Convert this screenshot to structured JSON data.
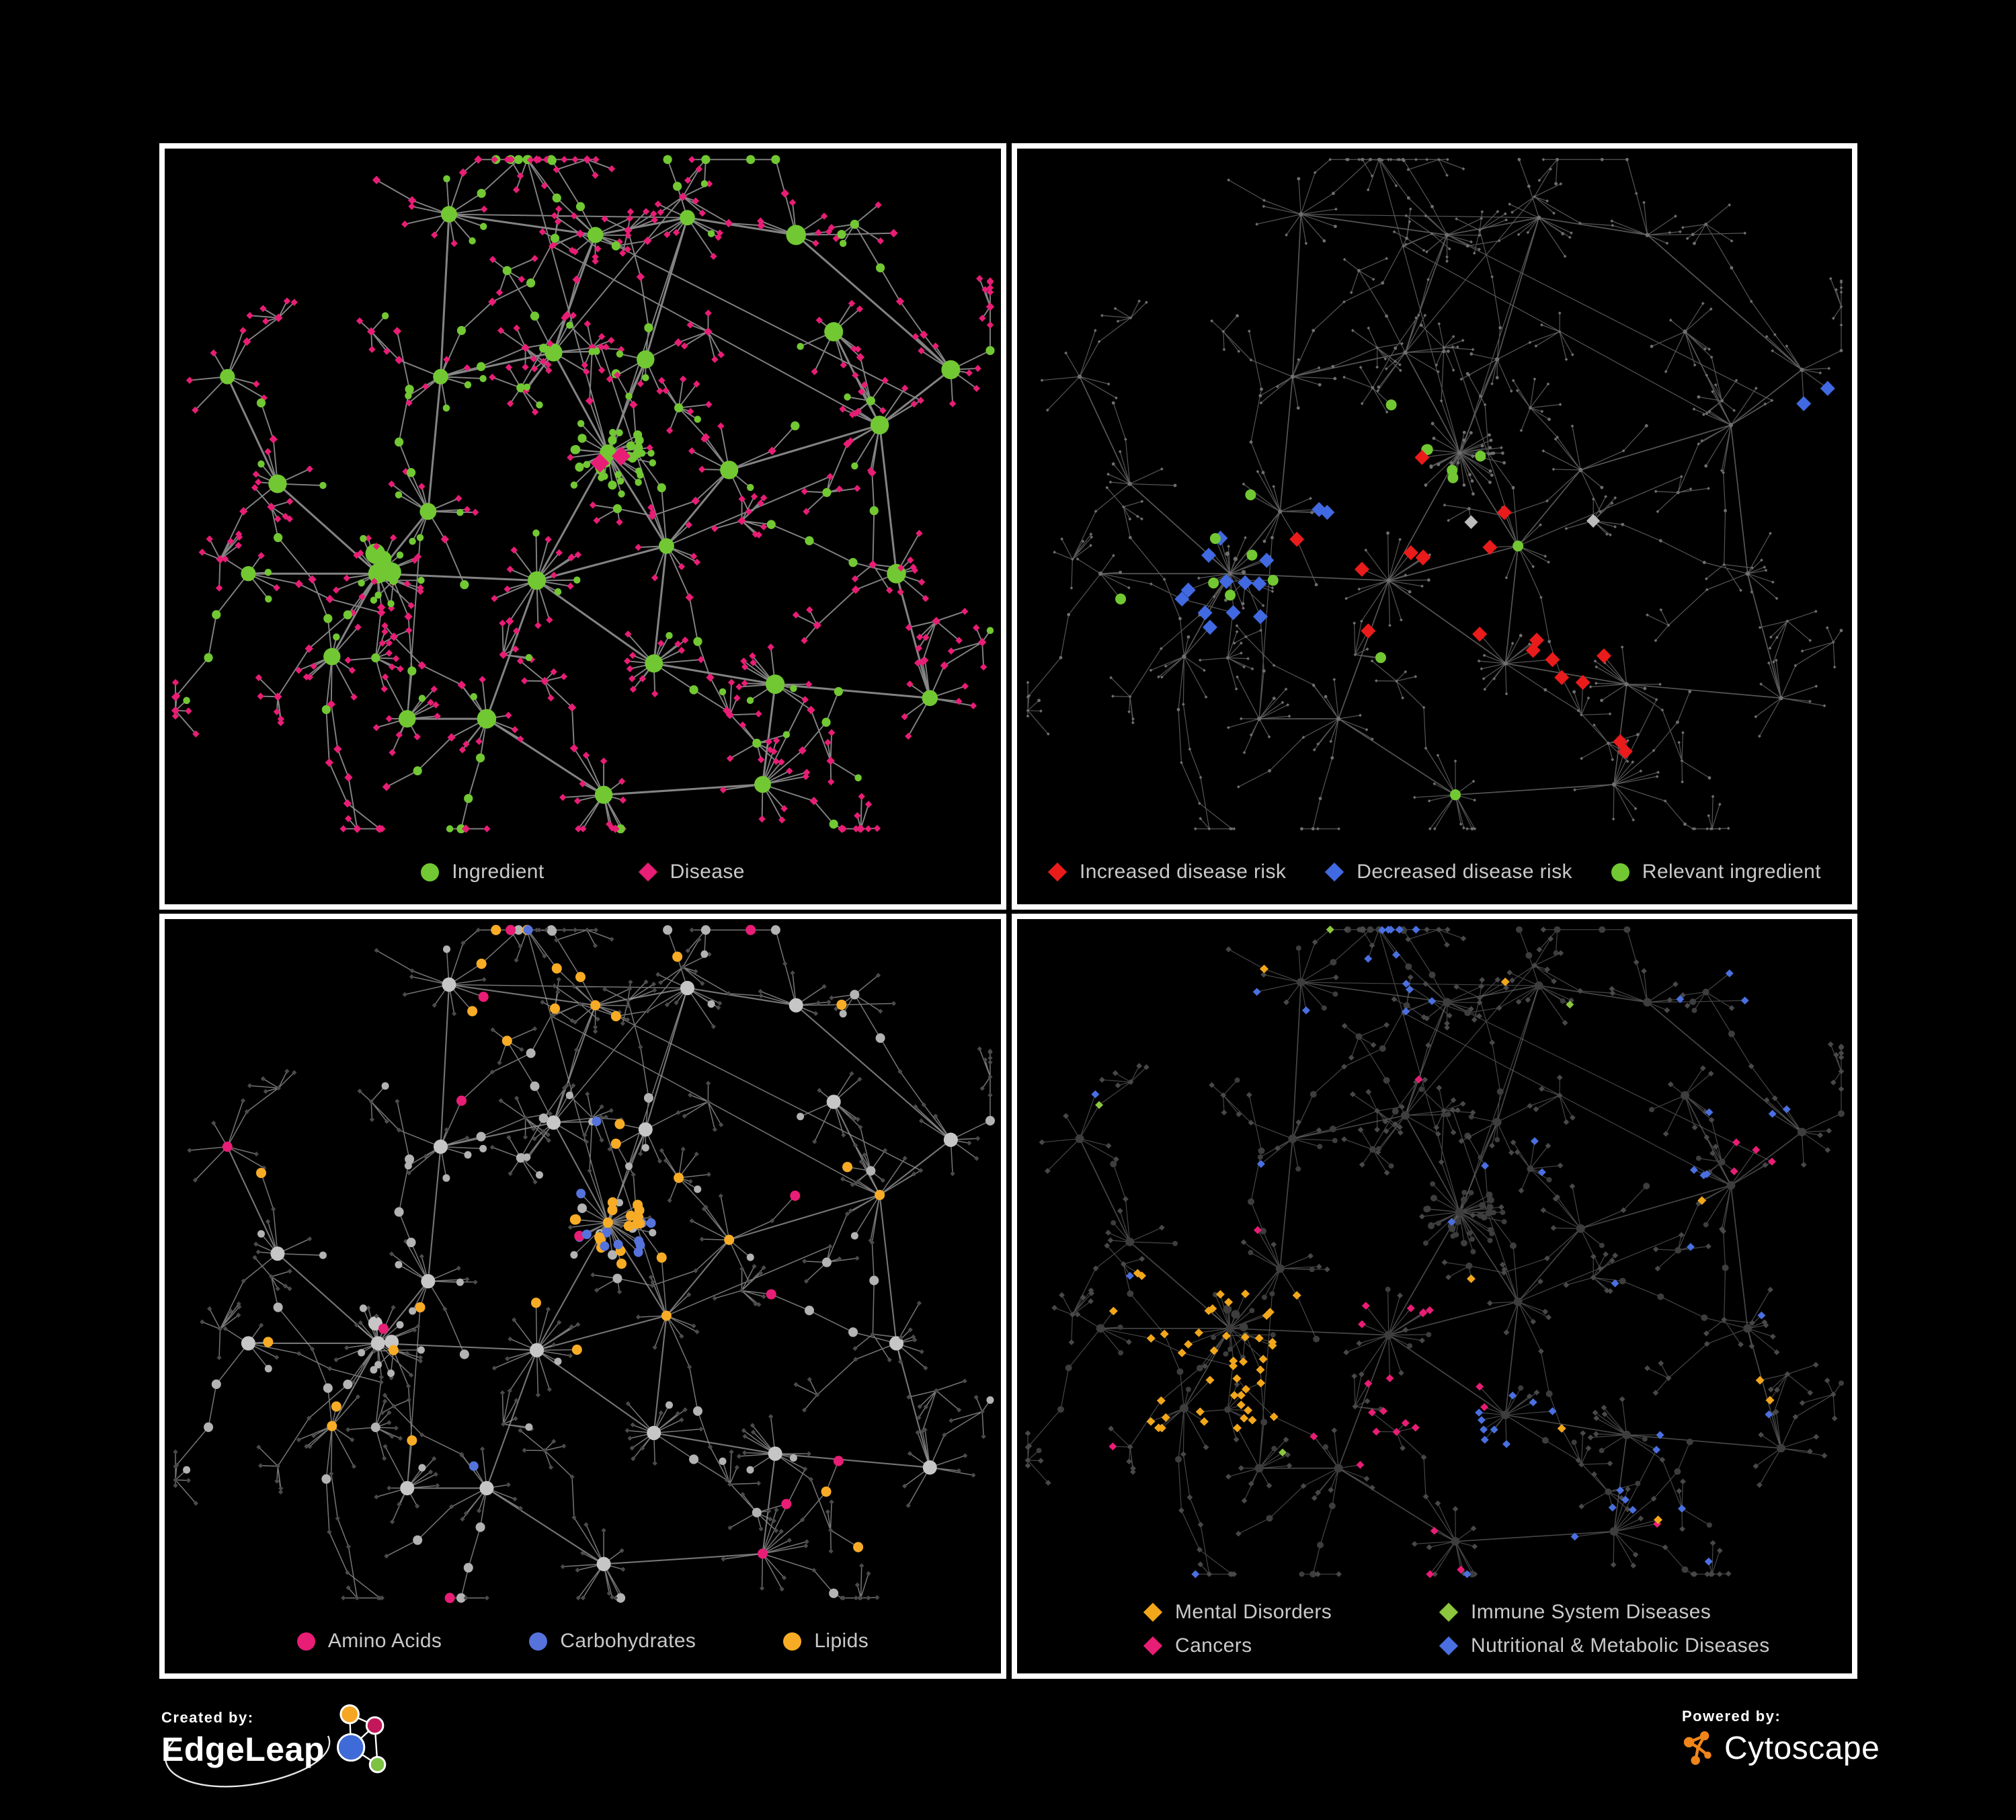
{
  "page": {
    "background": "#000000",
    "panel_border": "#FFFFFF"
  },
  "panels": [
    {
      "id": "ingredient-disease",
      "legend": [
        {
          "shape": "circle",
          "color": "#72C832",
          "label": "Ingredient"
        },
        {
          "shape": "diamond",
          "color": "#E81D75",
          "label": "Disease"
        }
      ],
      "palette": {
        "ingredient": "#72C832",
        "disease": "#E81D75"
      },
      "edges": {
        "color": "#8A8A8A",
        "tree_width": 3,
        "width": 1.9,
        "opacity": 0.95
      }
    },
    {
      "id": "disease-risk",
      "legend": [
        {
          "shape": "diamond",
          "color": "#EA1B1B",
          "label": "Increased disease risk"
        },
        {
          "shape": "diamond",
          "color": "#4169E1",
          "label": "Decreased disease risk"
        },
        {
          "shape": "circle",
          "color": "#72C832",
          "label": "Relevant ingredient"
        }
      ],
      "palette": {
        "base": "#6F6F6F",
        "red": "#EA1B1B",
        "blue": "#4169E1",
        "green": "#72C832",
        "neutral": "#BCBCBC"
      },
      "edges": {
        "color": "#5E5E5E",
        "tree_width": 1.7,
        "width": 1.2,
        "opacity": 0.9
      }
    },
    {
      "id": "ingredient-classes",
      "legend": [
        {
          "shape": "circle",
          "color": "#E81D75",
          "label": "Amino Acids"
        },
        {
          "shape": "circle",
          "color": "#5673DB",
          "label": "Carbohydrates"
        },
        {
          "shape": "circle",
          "color": "#F8AC26",
          "label": "Lipids"
        }
      ],
      "palette": {
        "ingredient": "#B3B3B3",
        "hub": "#C6C6C6",
        "disease": "#4B4B4B",
        "amino": "#E81D75",
        "carb": "#5673DB",
        "lipid": "#F8AC26"
      },
      "edges": {
        "color": "#9C9C9C",
        "tree_width": 2.1,
        "width": 1.5,
        "opacity": 0.75
      }
    },
    {
      "id": "disease-categories",
      "legend": [
        {
          "shape": "diamond",
          "color": "#F2A71B",
          "label": "Mental Disorders"
        },
        {
          "shape": "diamond",
          "color": "#8CC63F",
          "label": "Immune System Diseases"
        },
        {
          "shape": "diamond",
          "color": "#E81D75",
          "label": "Cancers"
        },
        {
          "shape": "diamond",
          "color": "#4A6FE0",
          "label": "Nutritional & Metabolic Diseases"
        }
      ],
      "palette": {
        "ingredient": "#3D3D3D",
        "disease": "#484848",
        "mental": "#F2A71B",
        "immune": "#8CC63F",
        "cancer": "#E81D75",
        "nutri": "#4A6FE0"
      },
      "edges": {
        "color": "#747474",
        "tree_width": 1.7,
        "width": 1.2,
        "opacity": 0.6
      }
    }
  ],
  "footer": {
    "created_by": "Created by:",
    "created_brand": "EdgeLeap",
    "powered_by": "Powered by:",
    "powered_brand": "Cytoscape",
    "logo_colors": {
      "white": "#FFFFFF",
      "orange": "#F5A623",
      "magenta": "#C2185B",
      "blue": "#3F6BD8",
      "green": "#7DC242",
      "cyto_orange": "#F0861A"
    }
  },
  "network": {
    "seed": 11,
    "cross_links": 10,
    "hubs": [
      [
        0.53,
        0.44,
        20,
        "greens"
      ],
      [
        0.445,
        0.625,
        16,
        "mix"
      ],
      [
        0.255,
        0.615,
        18,
        "mix"
      ],
      [
        0.315,
        0.525,
        10,
        "mix"
      ],
      [
        0.585,
        0.745,
        14,
        "star"
      ],
      [
        0.29,
        0.825,
        11,
        "star"
      ],
      [
        0.525,
        0.935,
        12,
        "star"
      ],
      [
        0.34,
        0.095,
        8,
        "branch"
      ],
      [
        0.515,
        0.125,
        8,
        "branch"
      ],
      [
        0.625,
        0.1,
        7,
        "branch"
      ],
      [
        0.855,
        0.4,
        9,
        "mix"
      ],
      [
        0.8,
        0.265,
        8,
        "star"
      ],
      [
        0.94,
        0.32,
        7,
        "star"
      ],
      [
        0.73,
        0.775,
        11,
        "star"
      ],
      [
        0.875,
        0.615,
        7,
        "branch"
      ],
      [
        0.075,
        0.33,
        6,
        "branch"
      ],
      [
        0.135,
        0.485,
        6,
        "branch"
      ],
      [
        0.2,
        0.735,
        8,
        "branch"
      ],
      [
        0.385,
        0.825,
        9,
        "star"
      ],
      [
        0.6,
        0.575,
        8,
        "mix"
      ],
      [
        0.675,
        0.465,
        6,
        "mix"
      ],
      [
        0.465,
        0.295,
        9,
        "mix"
      ],
      [
        0.33,
        0.33,
        8,
        "mix"
      ],
      [
        0.755,
        0.125,
        6,
        "branch"
      ],
      [
        0.915,
        0.795,
        8,
        "star"
      ],
      [
        0.575,
        0.305,
        7,
        "greens"
      ],
      [
        0.1,
        0.615,
        5,
        "branch"
      ],
      [
        0.715,
        0.92,
        9,
        "star"
      ]
    ],
    "hub_edges": [
      [
        0,
        1
      ],
      [
        0,
        19
      ],
      [
        0,
        21
      ],
      [
        0,
        25
      ],
      [
        1,
        2
      ],
      [
        2,
        3
      ],
      [
        2,
        16
      ],
      [
        2,
        17
      ],
      [
        1,
        4
      ],
      [
        4,
        13
      ],
      [
        1,
        18
      ],
      [
        18,
        5
      ],
      [
        18,
        6
      ],
      [
        21,
        8
      ],
      [
        8,
        7
      ],
      [
        8,
        9
      ],
      [
        3,
        22
      ],
      [
        22,
        7
      ],
      [
        19,
        20
      ],
      [
        20,
        10
      ],
      [
        10,
        11
      ],
      [
        10,
        12
      ],
      [
        10,
        14
      ],
      [
        13,
        24
      ],
      [
        13,
        27
      ],
      [
        9,
        23
      ],
      [
        15,
        16
      ],
      [
        2,
        26
      ],
      [
        6,
        27
      ],
      [
        14,
        24
      ],
      [
        25,
        9
      ],
      [
        1,
        19
      ],
      [
        4,
        19
      ],
      [
        21,
        22
      ],
      [
        12,
        23
      ]
    ]
  }
}
